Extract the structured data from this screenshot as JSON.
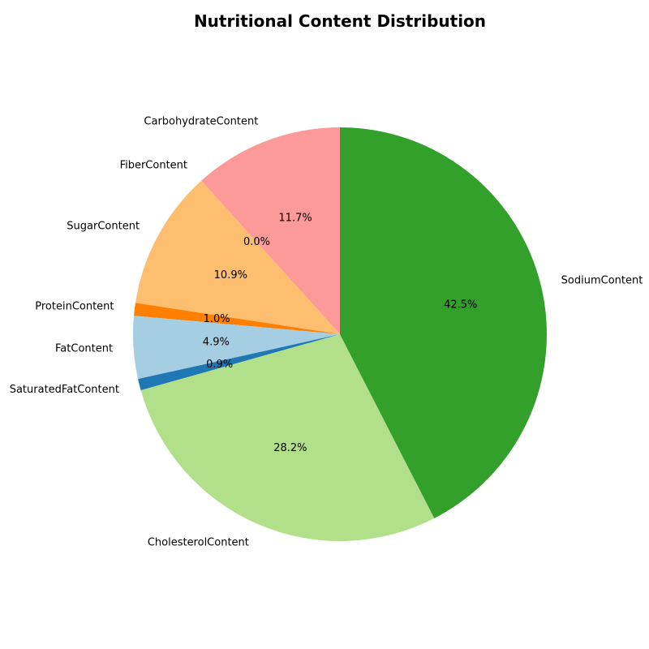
{
  "chart_data": {
    "type": "pie",
    "title": "Nutritional Content Distribution",
    "start_angle_deg": 90,
    "direction": "counterclockwise",
    "slices": [
      {
        "label": "CarbohydrateContent",
        "percent_label": "11.7%",
        "value": 11.7,
        "color": "#fb9a99"
      },
      {
        "label": "FiberContent",
        "percent_label": "0.0%",
        "value": 0.0,
        "color": "#e31a1c"
      },
      {
        "label": "SugarContent",
        "percent_label": "10.9%",
        "value": 10.9,
        "color": "#fdbf6f"
      },
      {
        "label": "ProteinContent",
        "percent_label": "1.0%",
        "value": 1.0,
        "color": "#ff7f00"
      },
      {
        "label": "FatContent",
        "percent_label": "4.9%",
        "value": 4.9,
        "color": "#a6cee3"
      },
      {
        "label": "SaturatedFatContent",
        "percent_label": "0.9%",
        "value": 0.9,
        "color": "#1f78b4"
      },
      {
        "label": "CholesterolContent",
        "percent_label": "28.2%",
        "value": 28.2,
        "color": "#b2df8a"
      },
      {
        "label": "SodiumContent",
        "percent_label": "42.5%",
        "value": 42.5,
        "color": "#33a02c"
      }
    ]
  }
}
